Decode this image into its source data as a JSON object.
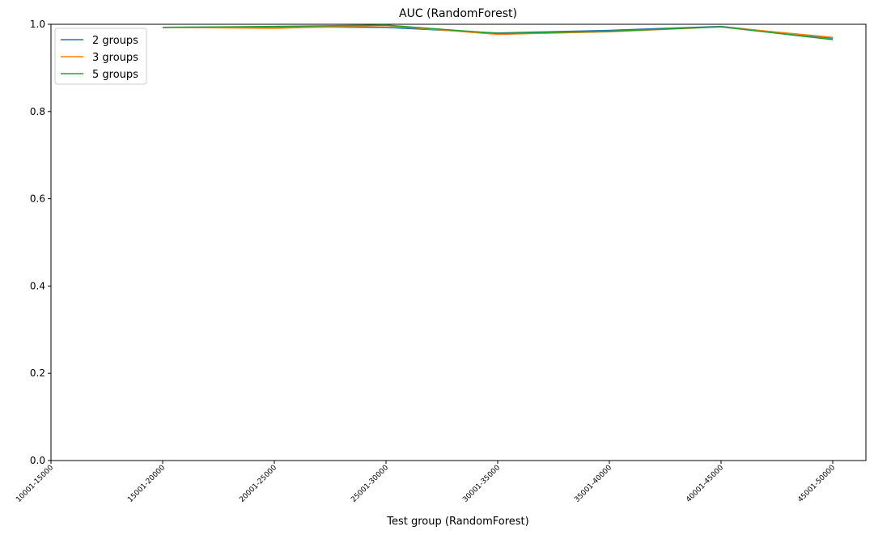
{
  "chart_data": {
    "type": "line",
    "title": "AUC (RandomForest)",
    "xlabel": "Test group (RandomForest)",
    "ylabel": "",
    "categories": [
      "10001-15000",
      "15001-20000",
      "20001-25000",
      "25001-30000",
      "30001-35000",
      "35001-40000",
      "40001-45000",
      "45001-50000"
    ],
    "ylim": [
      0,
      1.0
    ],
    "yticks": [
      "0.0",
      "0.2",
      "0.4",
      "0.6",
      "0.8",
      "1.0"
    ],
    "grid": false,
    "legend_position": "top-left",
    "series": [
      {
        "name": "2 groups",
        "color": "#1f77b4",
        "values": [
          null,
          0.993,
          0.994,
          0.993,
          0.98,
          0.986,
          0.995,
          0.968
        ]
      },
      {
        "name": "3 groups",
        "color": "#ff7f0e",
        "values": [
          null,
          0.993,
          0.991,
          0.997,
          0.977,
          0.983,
          0.994,
          0.97
        ]
      },
      {
        "name": "5 groups",
        "color": "#2ca02c",
        "values": [
          null,
          0.993,
          0.995,
          0.998,
          0.979,
          0.984,
          0.994,
          0.965
        ]
      }
    ]
  }
}
